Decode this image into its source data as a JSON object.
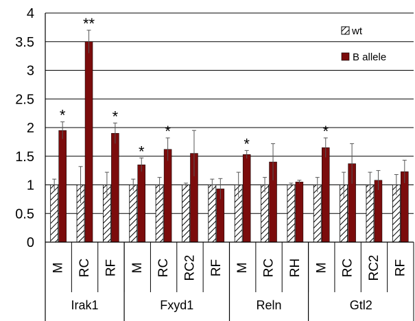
{
  "chart_data": {
    "type": "bar",
    "ylim": [
      0,
      4
    ],
    "yticks": [
      "0",
      "0.5",
      "1",
      "1.5",
      "2",
      "2.5",
      "3",
      "3.5",
      "4"
    ],
    "grid": true,
    "legend_position": "top-right",
    "colors": {
      "wt": "#ffffff",
      "b_allele": "#7b0c0c",
      "hatch": "#000000"
    },
    "groups": [
      {
        "name": "Irak1",
        "categories": [
          "M",
          "RC",
          "RF"
        ]
      },
      {
        "name": "Fxyd1",
        "categories": [
          "M",
          "RC",
          "RC2",
          "RF"
        ]
      },
      {
        "name": "Reln",
        "categories": [
          "M",
          "RC",
          "RH"
        ]
      },
      {
        "name": "Gtl2",
        "categories": [
          "M",
          "RC",
          "RC2",
          "RF"
        ]
      }
    ],
    "categories": [
      "M",
      "RC",
      "RF",
      "M",
      "RC",
      "RC2",
      "RF",
      "M",
      "RC",
      "RH",
      "M",
      "RC",
      "RC2",
      "RF"
    ],
    "series": [
      {
        "name": "wt",
        "values": [
          1.0,
          1.0,
          1.0,
          1.0,
          1.0,
          1.0,
          1.0,
          1.0,
          1.0,
          1.0,
          1.0,
          1.0,
          1.0,
          1.0
        ],
        "errors": [
          0.1,
          0.32,
          0.22,
          0.1,
          0.13,
          0.03,
          0.1,
          0.22,
          0.13,
          0.03,
          0.13,
          0.22,
          0.22,
          0.18
        ]
      },
      {
        "name": "B allele",
        "values": [
          1.95,
          3.5,
          1.9,
          1.35,
          1.62,
          1.55,
          0.93,
          1.53,
          1.4,
          1.05,
          1.65,
          1.37,
          1.08,
          1.23
        ],
        "errors": [
          0.15,
          0.2,
          0.18,
          0.12,
          0.2,
          0.4,
          0.18,
          0.07,
          0.32,
          0.03,
          0.17,
          0.35,
          0.17,
          0.2
        ]
      }
    ],
    "annotations": [
      "*",
      "**",
      "*",
      "*",
      "*",
      "",
      "",
      "*",
      "",
      "",
      "*",
      "",
      "",
      ""
    ]
  }
}
